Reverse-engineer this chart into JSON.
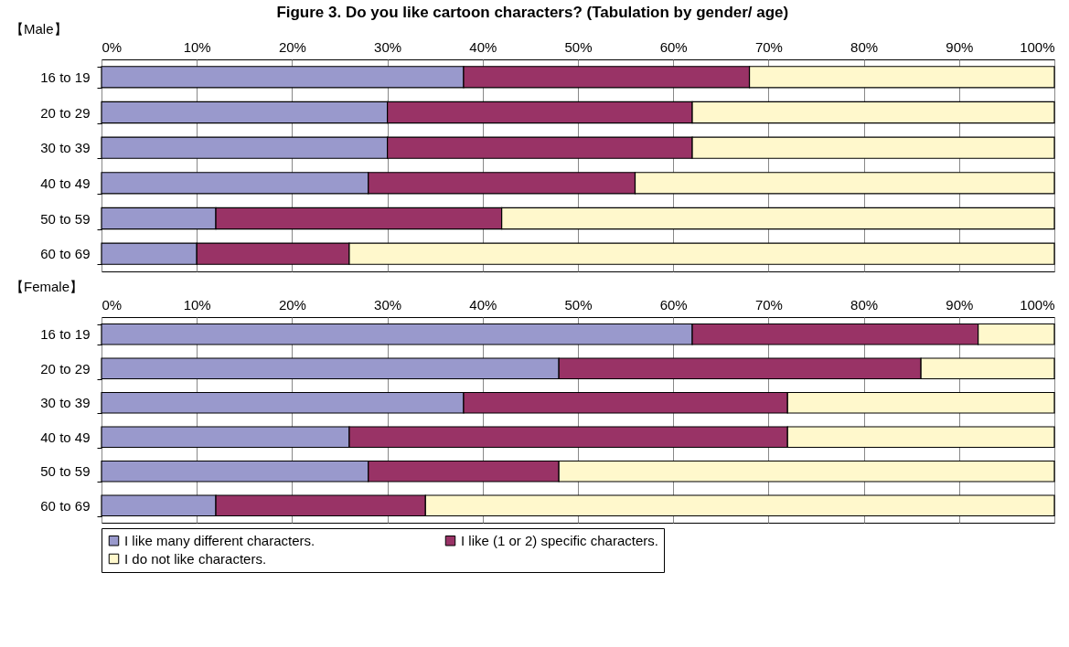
{
  "chart_data": [
    {
      "type": "bar",
      "title": "Figure 3. Do you like cartoon characters? (Tabulation by gender/ age)",
      "subtitle": "【Male】",
      "orientation": "horizontal",
      "stacked": true,
      "categories": [
        "16 to 19",
        "20 to 29",
        "30 to 39",
        "40 to 49",
        "50 to 59",
        "60 to 69"
      ],
      "series": [
        {
          "color": "#9999cc",
          "values": [
            38,
            30,
            30,
            28,
            12,
            10
          ]
        },
        {
          "color": "#993366",
          "values": [
            30,
            32,
            32,
            28,
            30,
            16
          ]
        },
        {
          "color": "#fff8cc",
          "values": [
            32,
            38,
            38,
            44,
            58,
            74
          ]
        }
      ],
      "xlim": [
        0,
        100
      ],
      "xticks": [
        {
          "value": 0,
          "label": "0%"
        },
        {
          "value": 10,
          "label": "10%"
        },
        {
          "value": 20,
          "label": "20%"
        },
        {
          "value": 30,
          "label": "30%"
        },
        {
          "value": 40,
          "label": "40%"
        },
        {
          "value": 50,
          "label": "50%"
        },
        {
          "value": 60,
          "label": "60%"
        },
        {
          "value": 70,
          "label": "70%"
        },
        {
          "value": 80,
          "label": "80%"
        },
        {
          "value": 90,
          "label": "90%"
        },
        {
          "value": 100,
          "label": "100%"
        }
      ],
      "grid": "x",
      "legend": false
    },
    {
      "type": "bar",
      "subtitle": "【Female】",
      "orientation": "horizontal",
      "stacked": true,
      "categories": [
        "16 to 19",
        "20 to 29",
        "30 to 39",
        "40 to 49",
        "50 to 59",
        "60 to 69"
      ],
      "series": [
        {
          "name": "I like many different characters.",
          "color": "#9999cc",
          "values": [
            62,
            48,
            38,
            26,
            28,
            12
          ]
        },
        {
          "name": "I like (1 or 2) specific characters.",
          "color": "#993366",
          "values": [
            30,
            38,
            34,
            46,
            20,
            22
          ]
        },
        {
          "name": "I do not like characters.",
          "color": "#fff8cc",
          "values": [
            8,
            14,
            28,
            28,
            52,
            66
          ]
        }
      ],
      "xlim": [
        0,
        100
      ],
      "xticks": [
        {
          "value": 0,
          "label": "0%"
        },
        {
          "value": 10,
          "label": "10%"
        },
        {
          "value": 20,
          "label": "20%"
        },
        {
          "value": 30,
          "label": "30%"
        },
        {
          "value": 40,
          "label": "40%"
        },
        {
          "value": 50,
          "label": "50%"
        },
        {
          "value": 60,
          "label": "60%"
        },
        {
          "value": 70,
          "label": "70%"
        },
        {
          "value": 80,
          "label": "80%"
        },
        {
          "value": 90,
          "label": "90%"
        },
        {
          "value": 100,
          "label": "100%"
        }
      ],
      "grid": "x",
      "legend": "bottom"
    }
  ]
}
